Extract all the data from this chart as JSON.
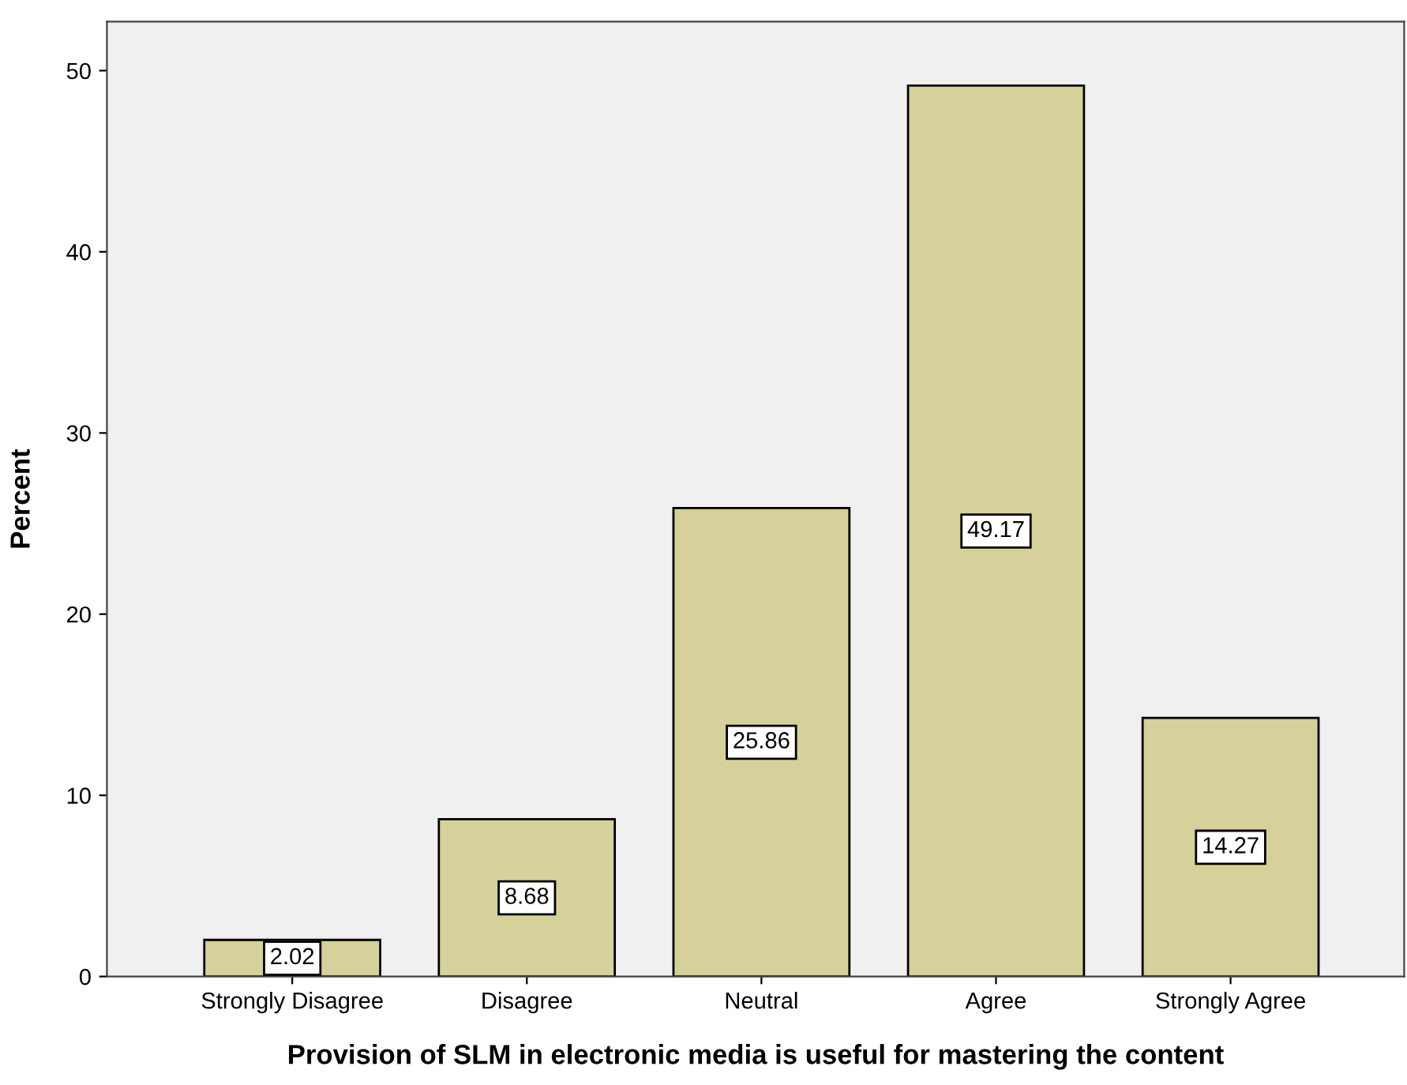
{
  "chart_data": {
    "type": "bar",
    "xlabel": "Provision of SLM in electronic media is useful for mastering the content",
    "ylabel": "Percent",
    "categories": [
      "Strongly Disagree",
      "Disagree",
      "Neutral",
      "Agree",
      "Strongly Agree"
    ],
    "values": [
      2.02,
      8.68,
      25.86,
      49.17,
      14.27
    ],
    "color": "#d6d09a",
    "ylim": [
      0,
      52.7
    ],
    "yticks": [
      0,
      10,
      20,
      30,
      40,
      50
    ],
    "grid": false,
    "data_labels": true
  }
}
